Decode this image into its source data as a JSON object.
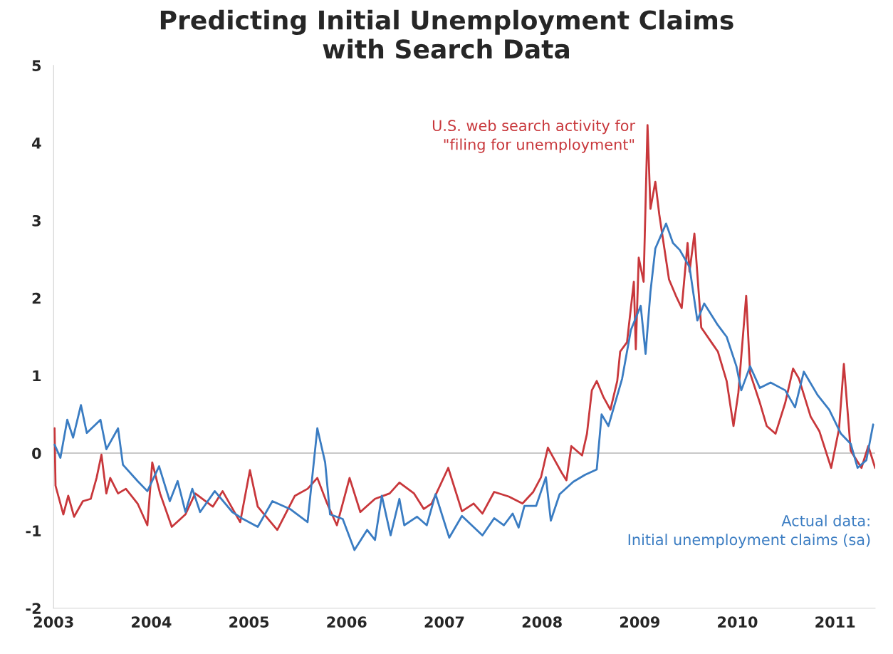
{
  "chart_data": {
    "type": "line",
    "title": "Predicting Initial Unemployment Claims\nwith Search Data",
    "series": [
      {
        "name": "U.S. web search activity for\n\"filing for unemployment\"",
        "color": "#c8373b",
        "x": [
          2003.01,
          2003.02,
          2003.1,
          2003.15,
          2003.21,
          2003.3,
          2003.38,
          2003.44,
          2003.49,
          2003.54,
          2003.58,
          2003.66,
          2003.74,
          2003.86,
          2003.96,
          2004.01,
          2004.09,
          2004.21,
          2004.35,
          2004.45,
          2004.63,
          2004.73,
          2004.91,
          2005.01,
          2005.09,
          2005.29,
          2005.47,
          2005.6,
          2005.7,
          2005.8,
          2005.9,
          2006.03,
          2006.14,
          2006.29,
          2006.44,
          2006.54,
          2006.69,
          2006.79,
          2006.87,
          2007.04,
          2007.18,
          2007.3,
          2007.39,
          2007.51,
          2007.66,
          2007.8,
          2007.91,
          2007.99,
          2008.06,
          2008.13,
          2008.2,
          2008.25,
          2008.3,
          2008.41,
          2008.46,
          2008.51,
          2008.56,
          2008.63,
          2008.7,
          2008.77,
          2008.8,
          2008.87,
          2008.94,
          2008.96,
          2008.99,
          2009.04,
          2009.08,
          2009.11,
          2009.16,
          2009.2,
          2009.3,
          2009.37,
          2009.43,
          2009.49,
          2009.51,
          2009.56,
          2009.63,
          2009.75,
          2009.8,
          2009.89,
          2009.96,
          2010.01,
          2010.09,
          2010.13,
          2010.23,
          2010.3,
          2010.39,
          2010.49,
          2010.57,
          2010.63,
          2010.75,
          2010.84,
          2010.96,
          2011.04,
          2011.09,
          2011.16,
          2011.27,
          2011.34,
          2011.41
        ],
        "values": [
          0.32,
          -0.42,
          -0.79,
          -0.55,
          -0.82,
          -0.62,
          -0.59,
          -0.32,
          -0.02,
          -0.52,
          -0.32,
          -0.52,
          -0.46,
          -0.65,
          -0.93,
          -0.12,
          -0.52,
          -0.95,
          -0.79,
          -0.52,
          -0.69,
          -0.49,
          -0.89,
          -0.22,
          -0.69,
          -0.99,
          -0.55,
          -0.46,
          -0.32,
          -0.65,
          -0.93,
          -0.32,
          -0.76,
          -0.59,
          -0.52,
          -0.38,
          -0.52,
          -0.72,
          -0.65,
          -0.19,
          -0.75,
          -0.65,
          -0.78,
          -0.5,
          -0.56,
          -0.65,
          -0.5,
          -0.31,
          0.07,
          -0.09,
          -0.25,
          -0.35,
          0.09,
          -0.03,
          0.25,
          0.81,
          0.93,
          0.72,
          0.56,
          0.93,
          1.31,
          1.43,
          2.21,
          1.34,
          2.52,
          2.21,
          4.23,
          3.15,
          3.5,
          3.08,
          2.24,
          2.03,
          1.87,
          2.71,
          2.34,
          2.83,
          1.62,
          1.4,
          1.31,
          0.93,
          0.35,
          0.78,
          2.03,
          1.03,
          0.65,
          0.35,
          0.25,
          0.65,
          1.09,
          0.96,
          0.47,
          0.28,
          -0.19,
          0.31,
          1.15,
          0.03,
          -0.19,
          0.09,
          -0.19
        ]
      },
      {
        "name": "Actual data:\nInitial unemployment claims (sa)",
        "color": "#3a7cc2",
        "x": [
          2003.01,
          2003.07,
          2003.14,
          2003.2,
          2003.28,
          2003.34,
          2003.48,
          2003.54,
          2003.66,
          2003.71,
          2003.86,
          2003.96,
          2004.08,
          2004.19,
          2004.27,
          2004.35,
          2004.42,
          2004.5,
          2004.65,
          2004.83,
          2004.94,
          2005.09,
          2005.24,
          2005.42,
          2005.6,
          2005.7,
          2005.78,
          2005.83,
          2005.96,
          2006.08,
          2006.21,
          2006.29,
          2006.36,
          2006.45,
          2006.54,
          2006.59,
          2006.72,
          2006.82,
          2006.91,
          2007.05,
          2007.18,
          2007.39,
          2007.51,
          2007.61,
          2007.7,
          2007.76,
          2007.82,
          2007.94,
          2008.04,
          2008.09,
          2008.18,
          2008.32,
          2008.44,
          2008.56,
          2008.61,
          2008.68,
          2008.82,
          2008.91,
          2009.01,
          2009.06,
          2009.11,
          2009.16,
          2009.27,
          2009.34,
          2009.41,
          2009.51,
          2009.59,
          2009.66,
          2009.8,
          2009.89,
          2009.99,
          2010.04,
          2010.13,
          2010.23,
          2010.34,
          2010.49,
          2010.59,
          2010.68,
          2010.82,
          2010.94,
          2011.06,
          2011.16,
          2011.23,
          2011.32,
          2011.39
        ],
        "values": [
          0.11,
          -0.06,
          0.43,
          0.2,
          0.62,
          0.26,
          0.43,
          0.05,
          0.32,
          -0.15,
          -0.36,
          -0.49,
          -0.17,
          -0.62,
          -0.36,
          -0.76,
          -0.46,
          -0.76,
          -0.49,
          -0.76,
          -0.85,
          -0.95,
          -0.62,
          -0.72,
          -0.89,
          0.32,
          -0.12,
          -0.79,
          -0.85,
          -1.25,
          -0.99,
          -1.12,
          -0.55,
          -1.06,
          -0.59,
          -0.93,
          -0.82,
          -0.93,
          -0.53,
          -1.09,
          -0.81,
          -1.06,
          -0.84,
          -0.93,
          -0.78,
          -0.96,
          -0.68,
          -0.68,
          -0.31,
          -0.87,
          -0.53,
          -0.37,
          -0.28,
          -0.21,
          0.5,
          0.35,
          0.96,
          1.59,
          1.9,
          1.28,
          2.08,
          2.64,
          2.96,
          2.71,
          2.62,
          2.4,
          1.71,
          1.93,
          1.65,
          1.5,
          1.12,
          0.81,
          1.12,
          0.84,
          0.91,
          0.81,
          0.59,
          1.05,
          0.75,
          0.56,
          0.25,
          0.12,
          -0.19,
          -0.09,
          0.37
        ]
      }
    ],
    "xlim": [
      2003,
      2011.41
    ],
    "xticks": [
      2003,
      2004,
      2005,
      2006,
      2007,
      2008,
      2009,
      2010,
      2011
    ],
    "ylim": [
      -2,
      5
    ],
    "yticks": [
      -2,
      -1,
      0,
      1,
      2,
      3,
      4,
      5
    ],
    "ref_lines": [
      {
        "axis": "y",
        "value": 0,
        "color": "#c8c8c8"
      }
    ],
    "grid": false,
    "legend": false,
    "line_style": "solid",
    "marker": "none"
  }
}
